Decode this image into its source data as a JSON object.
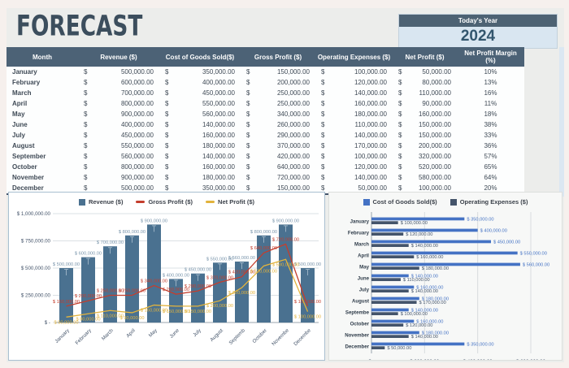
{
  "header": {
    "title": "FORECAST",
    "year_label": "Today's Year",
    "year": "2024"
  },
  "table": {
    "currency_symbol": "$",
    "columns": [
      "Month",
      "Revenue ($)",
      "Cost of Goods Sold($)",
      "Gross Profit ($)",
      "Operating Expenses ($)",
      "Net Profit ($)",
      "Net Profit Margin (%)"
    ],
    "rows": [
      {
        "month": "January",
        "revenue": "500,000.00",
        "cogs": "350,000.00",
        "gross": "150,000.00",
        "opex": "100,000.00",
        "net": "50,000.00",
        "margin": "10%"
      },
      {
        "month": "February",
        "revenue": "600,000.00",
        "cogs": "400,000.00",
        "gross": "200,000.00",
        "opex": "120,000.00",
        "net": "80,000.00",
        "margin": "13%"
      },
      {
        "month": "March",
        "revenue": "700,000.00",
        "cogs": "450,000.00",
        "gross": "250,000.00",
        "opex": "140,000.00",
        "net": "110,000.00",
        "margin": "16%"
      },
      {
        "month": "April",
        "revenue": "800,000.00",
        "cogs": "550,000.00",
        "gross": "250,000.00",
        "opex": "160,000.00",
        "net": "90,000.00",
        "margin": "11%"
      },
      {
        "month": "May",
        "revenue": "900,000.00",
        "cogs": "560,000.00",
        "gross": "340,000.00",
        "opex": "180,000.00",
        "net": "160,000.00",
        "margin": "18%"
      },
      {
        "month": "June",
        "revenue": "400,000.00",
        "cogs": "140,000.00",
        "gross": "260,000.00",
        "opex": "110,000.00",
        "net": "150,000.00",
        "margin": "38%"
      },
      {
        "month": "July",
        "revenue": "450,000.00",
        "cogs": "160,000.00",
        "gross": "290,000.00",
        "opex": "140,000.00",
        "net": "150,000.00",
        "margin": "33%"
      },
      {
        "month": "August",
        "revenue": "550,000.00",
        "cogs": "180,000.00",
        "gross": "370,000.00",
        "opex": "170,000.00",
        "net": "200,000.00",
        "margin": "36%"
      },
      {
        "month": "September",
        "revenue": "560,000.00",
        "cogs": "140,000.00",
        "gross": "420,000.00",
        "opex": "100,000.00",
        "net": "320,000.00",
        "margin": "57%"
      },
      {
        "month": "October",
        "revenue": "800,000.00",
        "cogs": "160,000.00",
        "gross": "640,000.00",
        "opex": "120,000.00",
        "net": "520,000.00",
        "margin": "65%"
      },
      {
        "month": "November",
        "revenue": "900,000.00",
        "cogs": "180,000.00",
        "gross": "720,000.00",
        "opex": "140,000.00",
        "net": "580,000.00",
        "margin": "64%"
      },
      {
        "month": "December",
        "revenue": "500,000.00",
        "cogs": "350,000.00",
        "gross": "150,000.00",
        "opex": "50,000.00",
        "net": "100,000.00",
        "margin": "20%"
      }
    ]
  },
  "chart_data": [
    {
      "type": "bar",
      "subtype": "columns-with-lines",
      "categories": [
        "January",
        "February",
        "March",
        "April",
        "May",
        "June",
        "July",
        "August",
        "Septemb",
        "October",
        "Novembe",
        "Decembe"
      ],
      "bar_series": {
        "name": "Revenue ($)",
        "values": [
          500000,
          600000,
          700000,
          800000,
          900000,
          400000,
          450000,
          550000,
          560000,
          800000,
          900000,
          500000
        ],
        "color": "#4a7190"
      },
      "line_series": [
        {
          "name": "Gross Profit ($)",
          "values": [
            150000,
            200000,
            250000,
            250000,
            340000,
            260000,
            290000,
            370000,
            420000,
            640000,
            720000,
            150000
          ],
          "color": "#c43e2d"
        },
        {
          "name": "Net Profit ($)",
          "values": [
            50000,
            80000,
            110000,
            90000,
            160000,
            150000,
            150000,
            200000,
            320000,
            520000,
            580000,
            100000
          ],
          "color": "#e2b33c"
        }
      ],
      "ylim": [
        0,
        1000000
      ],
      "ytick_step": 250000,
      "grid": "horizontal",
      "legend_position": "top",
      "data_labels": true
    },
    {
      "type": "bar",
      "subtype": "horizontal-grouped",
      "categories": [
        "January",
        "February",
        "March",
        "April",
        "May",
        "June",
        "July",
        "August",
        "Septembe",
        "October",
        "November",
        "December"
      ],
      "series": [
        {
          "name": "Cost of Goods Sold($)",
          "values": [
            350000,
            400000,
            450000,
            550000,
            560000,
            140000,
            160000,
            180000,
            140000,
            160000,
            180000,
            350000
          ],
          "color": "#4472c4"
        },
        {
          "name": "Operating Expenses ($)",
          "values": [
            100000,
            120000,
            140000,
            160000,
            180000,
            110000,
            140000,
            170000,
            100000,
            120000,
            140000,
            50000
          ],
          "color": "#44546a"
        }
      ],
      "xlim": [
        0,
        600000
      ],
      "xtick_step": 200000,
      "grid": "vertical",
      "legend_position": "top",
      "data_labels": true
    }
  ],
  "colors": {
    "page_bg": "#f6f0ed",
    "panel_bg": "#ecedeb",
    "title_text": "#3c4e5d",
    "table_header_bg": "#4c6276",
    "table_header_text": "#ffffff",
    "month_col_bg": "#dbe5ee",
    "tinted_col_bg": "#e9f1f7",
    "cell_text": "#3f4a56",
    "year_bar_bg": "#4d6273",
    "year_box_bg": "#d9e6f1",
    "year_text": "#33566e",
    "axis_text": "#44546a",
    "bar_label_text": "#7b96ac"
  }
}
